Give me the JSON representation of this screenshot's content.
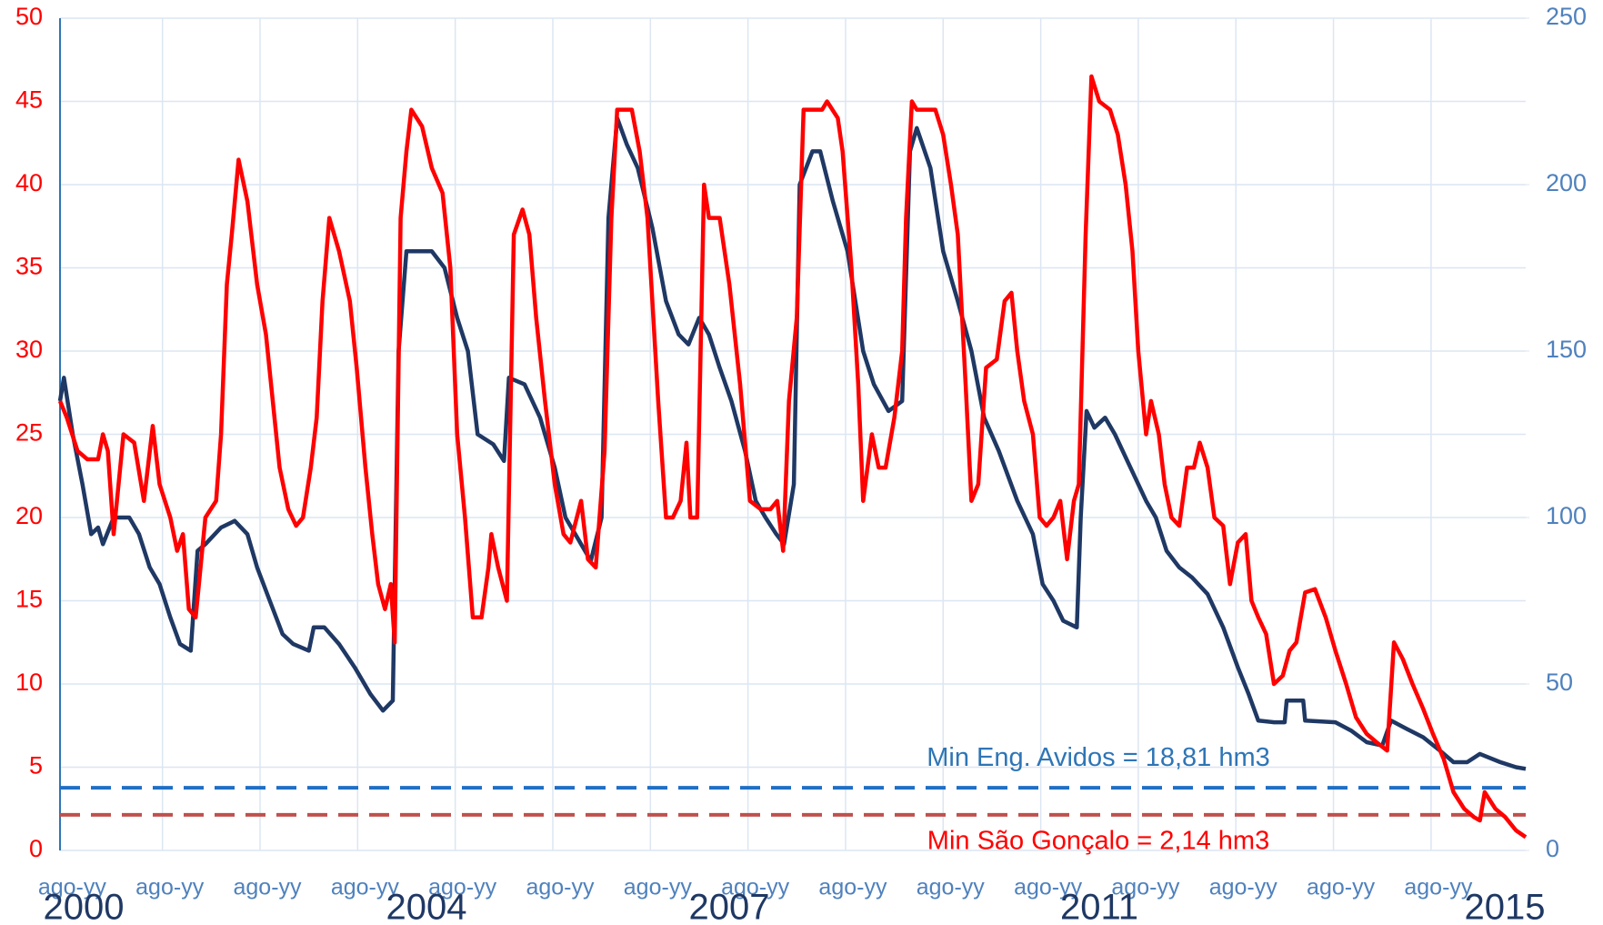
{
  "chart_data": {
    "type": "line",
    "xlim": [
      2000.6,
      2015.62
    ],
    "xticks": [
      {
        "value": 2000.65,
        "label": "ago-yy"
      },
      {
        "value": 2001.65,
        "label": "ago-yy"
      },
      {
        "value": 2002.65,
        "label": "ago-yy"
      },
      {
        "value": 2003.65,
        "label": "ago-yy"
      },
      {
        "value": 2004.65,
        "label": "ago-yy"
      },
      {
        "value": 2005.65,
        "label": "ago-yy"
      },
      {
        "value": 2006.65,
        "label": "ago-yy"
      },
      {
        "value": 2007.65,
        "label": "ago-yy"
      },
      {
        "value": 2008.65,
        "label": "ago-yy"
      },
      {
        "value": 2009.65,
        "label": "ago-yy"
      },
      {
        "value": 2010.65,
        "label": "ago-yy"
      },
      {
        "value": 2011.65,
        "label": "ago-yy"
      },
      {
        "value": 2012.65,
        "label": "ago-yy"
      },
      {
        "value": 2013.65,
        "label": "ago-yy"
      },
      {
        "value": 2014.65,
        "label": "ago-yy"
      }
    ],
    "ylim": [
      0,
      50
    ],
    "yticks": [
      0,
      5,
      10,
      15,
      20,
      25,
      30,
      35,
      40,
      45,
      50
    ],
    "y2lim": [
      0,
      250
    ],
    "y2ticks": [
      0,
      50,
      100,
      150,
      200,
      250
    ],
    "grid": true,
    "ytick_color": "#ff0000",
    "y2tick_color": "#4f81bd",
    "xtick_color": "#4f81bd",
    "year_labels": [
      "2000",
      "2004",
      "2007",
      "2011",
      "2015"
    ],
    "reference_lines": [
      {
        "label": "Min Eng. Avidos = 18,81 hm3",
        "value": 18.81,
        "axis": "y2",
        "color": "#1f6fc4"
      },
      {
        "label": "Min São Gonçalo = 2,14 hm3",
        "value": 2.14,
        "axis": "y",
        "color": "#c0504d"
      }
    ],
    "series": [
      {
        "color": "#ff0000",
        "axis": "y",
        "x": [
          2000.6,
          2000.67,
          2000.78,
          2000.88,
          2000.99,
          2001.04,
          2001.09,
          2001.15,
          2001.2,
          2001.25,
          2001.36,
          2001.46,
          2001.55,
          2001.62,
          2001.73,
          2001.8,
          2001.86,
          2001.92,
          2001.99,
          2002.09,
          2002.2,
          2002.25,
          2002.31,
          2002.36,
          2002.43,
          2002.52,
          2002.62,
          2002.71,
          2002.78,
          2002.85,
          2002.94,
          2003.02,
          2003.09,
          2003.17,
          2003.23,
          2003.29,
          2003.36,
          2003.46,
          2003.57,
          2003.64,
          2003.73,
          2003.8,
          2003.86,
          2003.93,
          2003.99,
          2004.03,
          2004.09,
          2004.15,
          2004.2,
          2004.31,
          2004.41,
          2004.52,
          2004.6,
          2004.67,
          2004.75,
          2004.83,
          2004.92,
          2004.99,
          2005.02,
          2005.09,
          2005.18,
          2005.25,
          2005.34,
          2005.41,
          2005.48,
          2005.57,
          2005.67,
          2005.76,
          2005.83,
          2005.94,
          2006.01,
          2006.09,
          2006.18,
          2006.25,
          2006.31,
          2006.46,
          2006.54,
          2006.62,
          2006.73,
          2006.81,
          2006.88,
          2006.96,
          2007.02,
          2007.06,
          2007.13,
          2007.2,
          2007.25,
          2007.36,
          2007.46,
          2007.57,
          2007.67,
          2007.78,
          2007.88,
          2007.95,
          2008.01,
          2008.07,
          2008.15,
          2008.22,
          2008.41,
          2008.46,
          2008.57,
          2008.62,
          2008.71,
          2008.78,
          2008.83,
          2008.92,
          2008.99,
          2009.06,
          2009.15,
          2009.23,
          2009.27,
          2009.33,
          2009.38,
          2009.57,
          2009.65,
          2009.73,
          2009.8,
          2009.88,
          2009.94,
          2010.01,
          2010.09,
          2010.2,
          2010.28,
          2010.35,
          2010.41,
          2010.48,
          2010.57,
          2010.64,
          2010.71,
          2010.78,
          2010.85,
          2010.92,
          2010.99,
          2011.04,
          2011.11,
          2011.17,
          2011.25,
          2011.36,
          2011.44,
          2011.52,
          2011.59,
          2011.65,
          2011.73,
          2011.78,
          2011.86,
          2011.92,
          2011.99,
          2012.07,
          2012.15,
          2012.22,
          2012.28,
          2012.36,
          2012.43,
          2012.52,
          2012.59,
          2012.67,
          2012.75,
          2012.81,
          2012.88,
          2012.96,
          2013.04,
          2013.13,
          2013.2,
          2013.27,
          2013.36,
          2013.46,
          2013.57,
          2013.67,
          2013.78,
          2013.88,
          2013.99,
          2014.09,
          2014.2,
          2014.27,
          2014.36,
          2014.46,
          2014.57,
          2014.67,
          2014.78,
          2014.88,
          2014.99,
          2015.09,
          2015.15,
          2015.2,
          2015.31,
          2015.41,
          2015.52,
          2015.62
        ],
        "values": [
          27,
          26,
          24,
          23.5,
          23.5,
          25,
          24,
          19,
          22,
          25,
          24.5,
          21,
          25.5,
          22,
          20,
          18,
          19,
          14.5,
          14,
          20,
          21,
          25,
          34,
          37,
          41.5,
          39,
          34,
          31,
          27,
          23,
          20.5,
          19.5,
          20,
          23,
          26,
          33,
          38,
          36,
          33,
          29,
          23,
          19,
          16,
          14.5,
          16,
          12.5,
          38,
          42,
          44.5,
          43.5,
          41,
          39.5,
          35,
          25,
          20,
          14,
          14,
          17,
          19,
          17,
          15,
          37,
          38.5,
          37,
          32,
          27,
          22,
          19,
          18.5,
          21,
          17.5,
          17,
          24,
          38,
          44.5,
          44.5,
          42,
          38,
          27,
          20,
          20,
          21,
          24.5,
          20,
          20,
          40,
          38,
          38,
          34,
          28,
          21,
          20.5,
          20.5,
          21,
          18,
          27,
          32,
          44.5,
          44.5,
          45,
          44,
          42,
          35,
          28,
          21,
          25,
          23,
          23,
          26,
          30,
          38,
          45,
          44.5,
          44.5,
          43,
          40,
          37,
          28,
          21,
          22,
          29,
          29.5,
          33,
          33.5,
          30,
          27,
          25,
          20,
          19.5,
          20,
          21,
          17.5,
          21,
          22,
          37,
          46.5,
          45,
          44.5,
          43,
          40,
          36,
          30,
          25,
          27,
          25,
          22,
          20,
          19.5,
          23,
          23,
          24.5,
          23,
          20,
          19.5,
          16,
          18.5,
          19,
          15,
          14,
          13,
          10,
          10.5,
          12,
          12.5,
          15.5,
          15.7,
          14,
          12,
          10,
          8,
          7,
          6.5,
          6,
          12.5,
          11.5,
          10,
          8.5,
          7,
          5.5,
          3.5,
          2.5,
          2,
          1.8,
          3.5,
          2.5,
          2,
          1.2,
          0.8
        ]
      },
      {
        "color": "#1f3864",
        "axis": "y2",
        "x": [
          2000.6,
          2000.64,
          2000.73,
          2000.83,
          2000.92,
          2000.99,
          2001.04,
          2001.15,
          2001.31,
          2001.41,
          2001.52,
          2001.62,
          2001.73,
          2001.83,
          2001.94,
          2002.01,
          2002.09,
          2002.25,
          2002.39,
          2002.52,
          2002.62,
          2002.75,
          2002.88,
          2002.99,
          2003.15,
          2003.2,
          2003.31,
          2003.46,
          2003.62,
          2003.78,
          2003.91,
          2004.01,
          2004.07,
          2004.15,
          2004.31,
          2004.41,
          2004.54,
          2004.67,
          2004.78,
          2004.88,
          2005.04,
          2005.15,
          2005.2,
          2005.36,
          2005.52,
          2005.67,
          2005.78,
          2005.88,
          2006.04,
          2006.15,
          2006.22,
          2006.31,
          2006.41,
          2006.52,
          2006.67,
          2006.81,
          2006.94,
          2007.04,
          2007.15,
          2007.25,
          2007.36,
          2007.48,
          2007.62,
          2007.73,
          2007.83,
          2007.94,
          2008.02,
          2008.12,
          2008.18,
          2008.31,
          2008.39,
          2008.52,
          2008.67,
          2008.83,
          2008.94,
          2009.09,
          2009.23,
          2009.31,
          2009.38,
          2009.52,
          2009.65,
          2009.8,
          2009.94,
          2010.07,
          2010.22,
          2010.41,
          2010.57,
          2010.67,
          2010.78,
          2010.88,
          2011.02,
          2011.06,
          2011.12,
          2011.2,
          2011.31,
          2011.41,
          2011.57,
          2011.73,
          2011.83,
          2011.94,
          2012.07,
          2012.2,
          2012.36,
          2012.52,
          2012.67,
          2012.78,
          2012.88,
          2013.04,
          2013.15,
          2013.17,
          2013.34,
          2013.36,
          2013.67,
          2013.83,
          2013.99,
          2014.15,
          2014.24,
          2014.4,
          2014.57,
          2014.74,
          2014.88,
          2015.02,
          2015.15,
          2015.36,
          2015.52,
          2015.62
        ],
        "values": [
          135,
          142,
          125,
          110,
          95,
          97,
          92,
          100,
          100,
          95,
          85,
          80,
          70,
          62,
          60,
          90,
          92,
          97,
          99,
          95,
          85,
          75,
          65,
          62,
          60,
          67,
          67,
          62,
          55,
          47,
          42,
          45,
          150,
          180,
          180,
          180,
          175,
          160,
          150,
          125,
          122,
          117,
          142,
          140,
          130,
          115,
          100,
          95,
          87,
          100,
          190,
          220,
          212,
          205,
          187,
          165,
          155,
          152,
          160,
          155,
          145,
          135,
          120,
          105,
          100,
          95,
          92,
          110,
          200,
          210,
          210,
          195,
          180,
          150,
          140,
          132,
          135,
          210,
          217,
          205,
          180,
          165,
          150,
          130,
          120,
          105,
          95,
          80,
          75,
          69,
          67,
          100,
          132,
          127,
          130,
          125,
          115,
          105,
          100,
          90,
          85,
          82,
          77,
          67,
          55,
          47,
          39,
          38.5,
          38.5,
          45,
          45,
          39,
          38.5,
          36,
          32.5,
          31.5,
          39,
          36.5,
          34,
          30,
          26.5,
          26.5,
          29,
          26.5,
          25,
          24.5
        ]
      }
    ]
  }
}
